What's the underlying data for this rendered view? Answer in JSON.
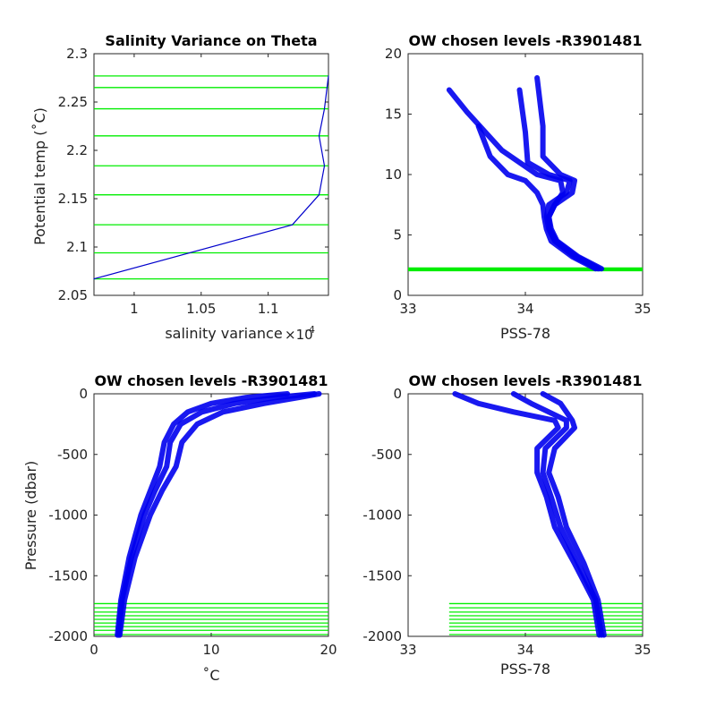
{
  "chart_data": [
    {
      "type": "line",
      "title": "Salinity Variance on Theta",
      "xlabel": "salinity variance",
      "x_multiplier": "×10",
      "x_exponent": "-4",
      "ylabel": "Potential temp (˚C)",
      "xlim": [
        0.97,
        1.145
      ],
      "ylim": [
        2.05,
        2.3
      ],
      "xticks": [
        "1",
        "1.05",
        "1.1"
      ],
      "yticks": [
        "2.05",
        "2.1",
        "2.15",
        "2.2",
        "2.25",
        "2.3"
      ],
      "series": [
        {
          "color": "#0000cc",
          "x": [
            0.97,
            1.118,
            1.138,
            1.142,
            1.138,
            1.142,
            1.145
          ],
          "y": [
            2.067,
            2.123,
            2.154,
            2.184,
            2.215,
            2.243,
            2.277
          ]
        }
      ],
      "levels": [
        2.067,
        2.094,
        2.123,
        2.154,
        2.184,
        2.215,
        2.243,
        2.265,
        2.277
      ],
      "level_color": "#00ee00"
    },
    {
      "type": "line",
      "title": "OW chosen levels -R3901481",
      "xlabel": "PSS-78",
      "ylabel": "",
      "xlim": [
        33,
        35
      ],
      "ylim": [
        0,
        20
      ],
      "xticks": [
        "33",
        "34",
        "35"
      ],
      "yticks": [
        "0",
        "5",
        "10",
        "15",
        "20"
      ],
      "series": [
        {
          "color": "#0000ee",
          "x": [
            34.62,
            34.42,
            34.25,
            34.2,
            34.18,
            34.2,
            34.35,
            34.38,
            34.2,
            34.02,
            34.0,
            33.95
          ],
          "y": [
            2.2,
            3.2,
            4.5,
            5.5,
            6.5,
            7.5,
            8.5,
            9.5,
            10.0,
            11.0,
            13.5,
            17.0
          ]
        },
        {
          "color": "#0000ee",
          "x": [
            34.65,
            34.45,
            34.27,
            34.22,
            34.2,
            34.25,
            34.4,
            34.42,
            34.3,
            34.15,
            34.15,
            34.1
          ],
          "y": [
            2.2,
            3.2,
            4.5,
            5.5,
            6.5,
            7.5,
            8.5,
            9.5,
            10.0,
            11.5,
            14.0,
            18.0
          ]
        },
        {
          "color": "#0000ee",
          "x": [
            34.6,
            34.4,
            34.22,
            34.18,
            34.16,
            34.15,
            34.1,
            34.0,
            33.85,
            33.7,
            33.6
          ],
          "y": [
            2.2,
            3.2,
            4.5,
            5.5,
            6.5,
            7.5,
            8.5,
            9.5,
            10.0,
            11.5,
            14.0
          ]
        },
        {
          "color": "#0000ee",
          "x": [
            34.63,
            34.44,
            34.26,
            34.21,
            34.2,
            34.25,
            34.32,
            34.3,
            34.1,
            33.8,
            33.5,
            33.35
          ],
          "y": [
            2.2,
            3.2,
            4.5,
            5.5,
            6.5,
            7.5,
            8.5,
            9.5,
            10.0,
            12.0,
            15.2,
            17.0
          ]
        }
      ],
      "levels": [
        2.1,
        2.2
      ],
      "level_color": "#00ee00"
    },
    {
      "type": "line",
      "title": "OW chosen levels -R3901481",
      "xlabel": "˚C",
      "ylabel": "Pressure (dbar)",
      "xlim": [
        0,
        20
      ],
      "ylim": [
        -2000,
        0
      ],
      "xticks": [
        "0",
        "10",
        "20"
      ],
      "yticks": [
        "-2000",
        "-1500",
        "-1000",
        "-500",
        "0"
      ],
      "series": [
        {
          "color": "#0000ee",
          "x": [
            2.1,
            2.4,
            3.2,
            4.3,
            5.2,
            6.2,
            6.5,
            7.4,
            9.2,
            12.0,
            15.5,
            18.8
          ],
          "y": [
            -1990,
            -1700,
            -1350,
            -1000,
            -800,
            -600,
            -400,
            -250,
            -150,
            -80,
            -30,
            0
          ]
        },
        {
          "color": "#0000ee",
          "x": [
            2.2,
            2.6,
            3.5,
            4.8,
            5.8,
            7.0,
            7.5,
            8.8,
            11.0,
            14.5,
            17.5,
            19.2
          ],
          "y": [
            -1990,
            -1700,
            -1350,
            -1000,
            -800,
            -600,
            -400,
            -250,
            -150,
            -80,
            -30,
            0
          ]
        },
        {
          "color": "#0000ee",
          "x": [
            2.0,
            2.3,
            3.0,
            4.0,
            4.8,
            5.6,
            6.0,
            6.8,
            8.0,
            10.0,
            13.0,
            16.5
          ],
          "y": [
            -1990,
            -1700,
            -1350,
            -1000,
            -800,
            -600,
            -400,
            -250,
            -150,
            -80,
            -30,
            0
          ]
        }
      ],
      "levels": [
        -1730,
        -1765,
        -1800,
        -1830,
        -1860,
        -1890,
        -1920,
        -1950,
        -1985
      ],
      "level_color": "#00ee00"
    },
    {
      "type": "line",
      "title": "OW chosen levels -R3901481",
      "xlabel": "PSS-78",
      "ylabel": "",
      "xlim": [
        33,
        35
      ],
      "ylim": [
        -2000,
        0
      ],
      "xticks": [
        "33",
        "34",
        "35"
      ],
      "yticks": [
        "-2000",
        "-1500",
        "-1000",
        "-500",
        "0"
      ],
      "series": [
        {
          "color": "#0000ee",
          "x": [
            34.65,
            34.6,
            34.45,
            34.3,
            34.22,
            34.15,
            34.17,
            34.35,
            34.35,
            34.2,
            34.05,
            33.9
          ],
          "y": [
            -1990,
            -1700,
            -1400,
            -1100,
            -850,
            -650,
            -450,
            -280,
            -220,
            -150,
            -80,
            0
          ]
        },
        {
          "color": "#0000ee",
          "x": [
            34.67,
            34.62,
            34.5,
            34.35,
            34.28,
            34.2,
            34.25,
            34.42,
            34.4,
            34.35,
            34.3,
            34.15
          ],
          "y": [
            -1990,
            -1700,
            -1400,
            -1100,
            -850,
            -650,
            -450,
            -280,
            -220,
            -150,
            -80,
            0
          ]
        },
        {
          "color": "#0000ee",
          "x": [
            34.63,
            34.58,
            34.42,
            34.25,
            34.18,
            34.1,
            34.1,
            34.28,
            34.25,
            33.9,
            33.6,
            33.4
          ],
          "y": [
            -1990,
            -1700,
            -1400,
            -1100,
            -850,
            -650,
            -450,
            -280,
            -220,
            -150,
            -80,
            0
          ]
        }
      ],
      "levels": [
        -1730,
        -1765,
        -1800,
        -1830,
        -1860,
        -1890,
        -1920,
        -1950,
        -1985
      ],
      "level_x_start": 33.35,
      "level_color": "#00ee00"
    }
  ]
}
